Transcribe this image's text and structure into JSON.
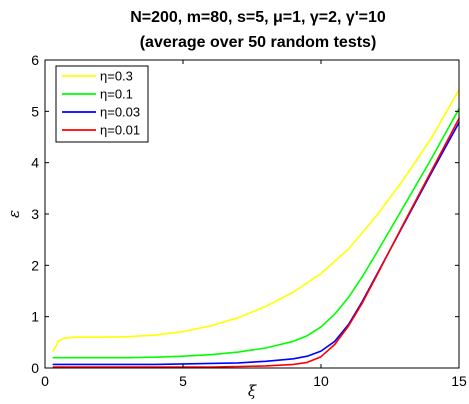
{
  "chart_data": {
    "type": "line",
    "title": [
      "N=200, m=80, s=5, μ=1, γ=2, γ'=10",
      "(average over 50 random tests)"
    ],
    "xlabel": "ξ",
    "ylabel": "ε",
    "xlim": [
      0,
      15
    ],
    "ylim": [
      0,
      6
    ],
    "xticks": [
      0,
      5,
      10,
      15
    ],
    "yticks": [
      0,
      1,
      2,
      3,
      4,
      5,
      6
    ],
    "grid": false,
    "legend_position": "top-left",
    "series": [
      {
        "name": "η=0.3",
        "color": "#ffff00",
        "x": [
          0.3,
          0.5,
          0.7,
          1,
          2,
          3,
          4,
          5,
          6,
          7,
          8,
          9,
          10,
          11,
          12,
          13,
          14,
          15
        ],
        "y": [
          0.33,
          0.53,
          0.58,
          0.6,
          0.6,
          0.61,
          0.64,
          0.71,
          0.82,
          0.98,
          1.2,
          1.48,
          1.84,
          2.32,
          2.96,
          3.68,
          4.48,
          5.42
        ]
      },
      {
        "name": "η=0.1",
        "color": "#00ff00",
        "x": [
          0.3,
          1,
          2,
          3,
          4,
          5,
          6,
          7,
          8,
          9,
          9.5,
          10,
          10.5,
          11,
          11.5,
          12,
          13,
          14,
          15
        ],
        "y": [
          0.2,
          0.2,
          0.2,
          0.2,
          0.21,
          0.23,
          0.26,
          0.31,
          0.39,
          0.52,
          0.63,
          0.8,
          1.05,
          1.38,
          1.78,
          2.23,
          3.15,
          4.08,
          5.05
        ]
      },
      {
        "name": "η=0.03",
        "color": "#0000ff",
        "x": [
          0.3,
          1,
          2,
          3,
          4,
          5,
          6,
          7,
          8,
          9,
          9.5,
          10,
          10.5,
          11,
          11.5,
          12,
          13,
          14,
          15
        ],
        "y": [
          0.07,
          0.07,
          0.07,
          0.07,
          0.07,
          0.08,
          0.09,
          0.1,
          0.13,
          0.18,
          0.23,
          0.33,
          0.52,
          0.85,
          1.3,
          1.8,
          2.8,
          3.8,
          4.78
        ]
      },
      {
        "name": "η=0.01",
        "color": "#ff0000",
        "x": [
          0.3,
          1,
          2,
          3,
          4,
          5,
          6,
          7,
          8,
          9,
          9.5,
          10,
          10.5,
          11,
          11.5,
          12,
          13,
          14,
          15
        ],
        "y": [
          0.02,
          0.02,
          0.02,
          0.02,
          0.02,
          0.02,
          0.02,
          0.03,
          0.04,
          0.07,
          0.11,
          0.22,
          0.46,
          0.82,
          1.27,
          1.78,
          2.82,
          3.84,
          4.86
        ]
      }
    ]
  }
}
